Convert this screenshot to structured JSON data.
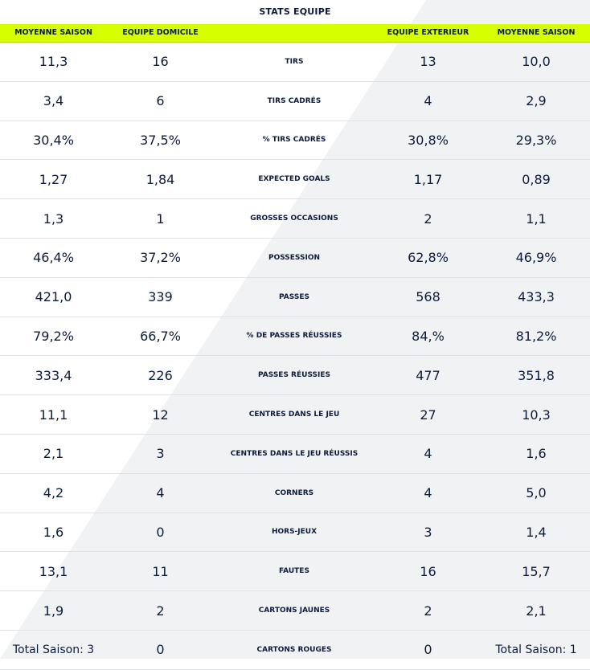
{
  "title": "STATS EQUIPE",
  "headers": {
    "col1": "MOYENNE SAISON",
    "col2": "EQUIPE DOMICILE",
    "col4": "EQUIPE EXTERIEUR",
    "col5": "MOYENNE SAISON"
  },
  "colors": {
    "header_bg": "#d6ff00",
    "text": "#0c1c3d",
    "row_divider": "#dfe1e5"
  },
  "rows": [
    {
      "home_avg": "11,3",
      "home": "16",
      "stat": "TIRS",
      "away": "13",
      "away_avg": "10,0"
    },
    {
      "home_avg": "3,4",
      "home": "6",
      "stat": "TIRS CADRÉS",
      "away": "4",
      "away_avg": "2,9"
    },
    {
      "home_avg": "30,4%",
      "home": "37,5%",
      "stat": "% TIRS CADRÉS",
      "away": "30,8%",
      "away_avg": "29,3%"
    },
    {
      "home_avg": "1,27",
      "home": "1,84",
      "stat": "EXPECTED GOALS",
      "away": "1,17",
      "away_avg": "0,89"
    },
    {
      "home_avg": "1,3",
      "home": "1",
      "stat": "GROSSES OCCASIONS",
      "away": "2",
      "away_avg": "1,1"
    },
    {
      "home_avg": "46,4%",
      "home": "37,2%",
      "stat": "POSSESSION",
      "away": "62,8%",
      "away_avg": "46,9%"
    },
    {
      "home_avg": "421,0",
      "home": "339",
      "stat": "PASSES",
      "away": "568",
      "away_avg": "433,3"
    },
    {
      "home_avg": "79,2%",
      "home": "66,7%",
      "stat": "% DE PASSES RÉUSSIES",
      "away": "84,%",
      "away_avg": "81,2%"
    },
    {
      "home_avg": "333,4",
      "home": "226",
      "stat": "PASSES RÉUSSIES",
      "away": "477",
      "away_avg": "351,8"
    },
    {
      "home_avg": "11,1",
      "home": "12",
      "stat": "CENTRES DANS LE JEU",
      "away": "27",
      "away_avg": "10,3"
    },
    {
      "home_avg": "2,1",
      "home": "3",
      "stat": "CENTRES DANS LE JEU RÉUSSIS",
      "away": "4",
      "away_avg": "1,6"
    },
    {
      "home_avg": "4,2",
      "home": "4",
      "stat": "CORNERS",
      "away": "4",
      "away_avg": "5,0"
    },
    {
      "home_avg": "1,6",
      "home": "0",
      "stat": "HORS-JEUX",
      "away": "3",
      "away_avg": "1,4"
    },
    {
      "home_avg": "13,1",
      "home": "11",
      "stat": "FAUTES",
      "away": "16",
      "away_avg": "15,7"
    },
    {
      "home_avg": "1,9",
      "home": "2",
      "stat": "CARTONS JAUNES",
      "away": "2",
      "away_avg": "2,1"
    },
    {
      "home_avg": "Total Saison: 3",
      "home": "0",
      "stat": "CARTONS ROUGES",
      "away": "0",
      "away_avg": "Total Saison: 1"
    }
  ]
}
